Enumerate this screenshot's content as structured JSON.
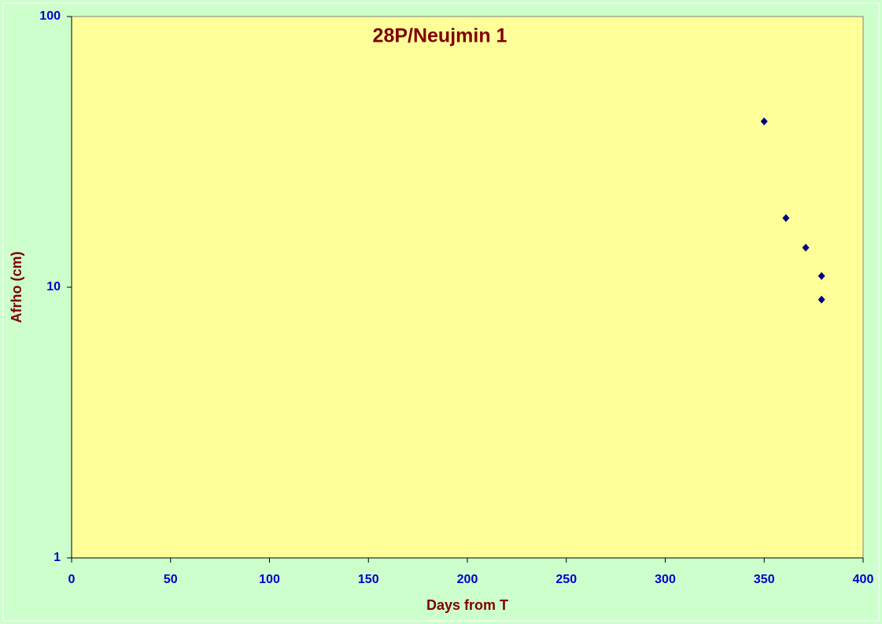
{
  "chart_data": {
    "type": "scatter",
    "title": "28P/Neujmin 1",
    "x_label": "Days from T",
    "y_label": "Afrho (cm)",
    "x": [
      350,
      361,
      371,
      379,
      379
    ],
    "values": [
      41,
      18,
      14,
      11,
      9
    ],
    "color": "#000080",
    "xlim": [
      0,
      400
    ],
    "xticks": [
      0,
      50,
      100,
      150,
      200,
      250,
      300,
      350,
      400
    ],
    "ylim": [
      1,
      100
    ],
    "yticks": [
      1,
      10,
      100
    ],
    "y_scale": "log",
    "grid": false
  }
}
